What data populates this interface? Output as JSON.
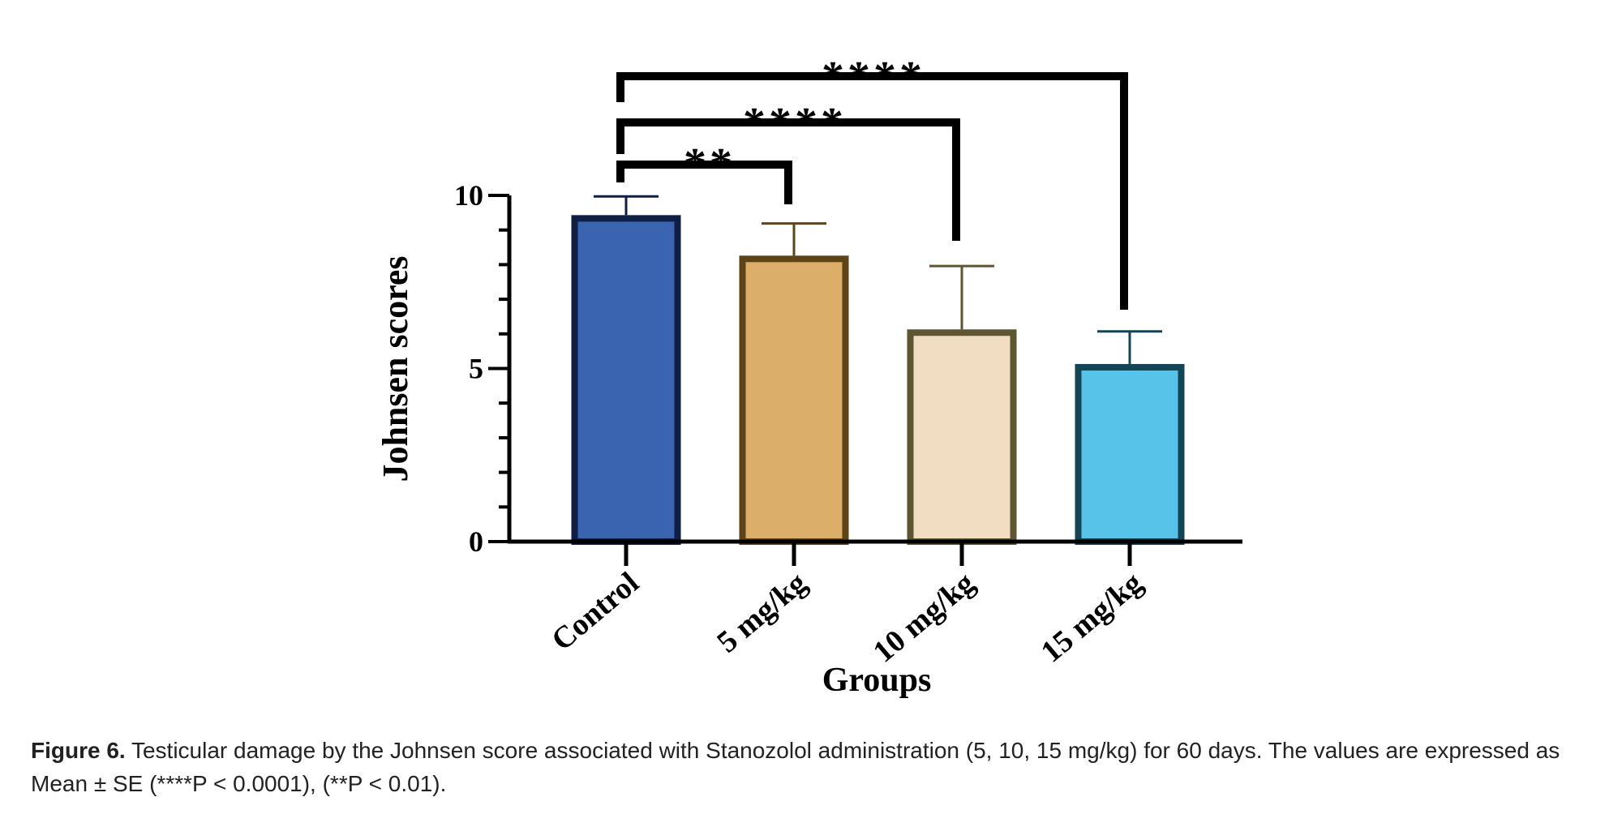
{
  "chart_data": {
    "type": "bar",
    "title": "",
    "xlabel": "Groups",
    "ylabel": "Johnsen scores",
    "ylim": [
      0,
      10
    ],
    "yticks": [
      "0",
      "5",
      "10"
    ],
    "minor_tick_step": 1,
    "categories": [
      "Control",
      "5 mg/kg",
      "10 mg/kg",
      "15 mg/kg"
    ],
    "values": [
      9.43,
      8.26,
      6.13,
      5.13
    ],
    "errors": [
      0.54,
      0.93,
      1.83,
      0.94
    ],
    "colors": [
      {
        "fill": "#3a64b0",
        "edge": "#0e1e45"
      },
      {
        "fill": "#dbae69",
        "edge": "#5e4218"
      },
      {
        "fill": "#f1ddc1",
        "edge": "#5e5632"
      },
      {
        "fill": "#58c3e8",
        "edge": "#134556"
      }
    ],
    "significance": [
      {
        "from": "Control",
        "to": "5 mg/kg",
        "label": "**"
      },
      {
        "from": "Control",
        "to": "10 mg/kg",
        "label": "****"
      },
      {
        "from": "Control",
        "to": "15 mg/kg",
        "label": "****"
      }
    ],
    "grid": false
  },
  "caption": {
    "label": "Figure 6.",
    "text": " Testicular damage by the Johnsen score associated with Stanozolol administration (5, 10, 15 mg/kg) for 60 days. The values are expressed as Mean ± SE (****P < 0.0001), (**P < 0.01)."
  }
}
